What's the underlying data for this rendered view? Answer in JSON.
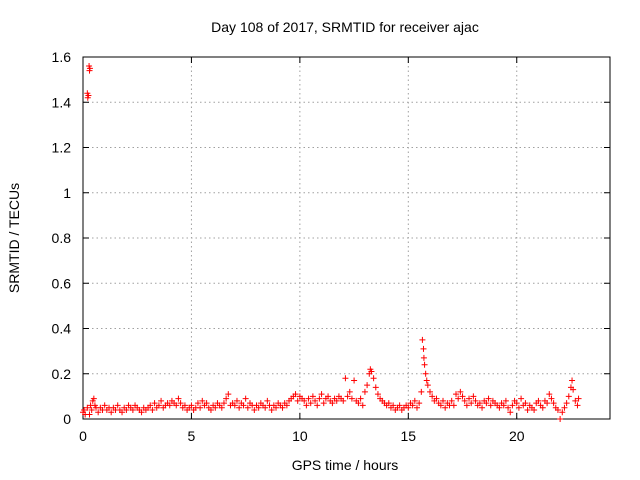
{
  "chart_data": {
    "type": "scatter",
    "title": "Day 108 of 2017, SRMTID for receiver ajac",
    "xlabel": "GPS time / hours",
    "ylabel": "SRMTID / TECUs",
    "xlim": [
      0,
      24.3
    ],
    "ylim": [
      0,
      1.6
    ],
    "xticks": [
      0,
      5,
      10,
      15,
      20
    ],
    "xtick_labels": [
      "0",
      "5",
      "10",
      "15",
      "20"
    ],
    "yticks": [
      0,
      0.2,
      0.4,
      0.6,
      0.8,
      1,
      1.2,
      1.4,
      1.6
    ],
    "ytick_labels": [
      "0",
      "0.2",
      "0.4",
      "0.6",
      "0.8",
      "1",
      "1.2",
      "1.4",
      "1.6"
    ],
    "grid": true,
    "marker": "plus",
    "color": "#ff0000",
    "series": [
      {
        "name": "SRMTID",
        "points": [
          [
            0.0,
            0.03
          ],
          [
            0.05,
            0.04
          ],
          [
            0.1,
            0.02
          ],
          [
            0.2,
            1.44
          ],
          [
            0.22,
            1.42
          ],
          [
            0.25,
            1.43
          ],
          [
            0.28,
            1.56
          ],
          [
            0.3,
            1.54
          ],
          [
            0.32,
            1.55
          ],
          [
            0.2,
            0.05
          ],
          [
            0.3,
            0.02
          ],
          [
            0.35,
            0.06
          ],
          [
            0.4,
            0.04
          ],
          [
            0.45,
            0.08
          ],
          [
            0.5,
            0.09
          ],
          [
            0.55,
            0.06
          ],
          [
            0.6,
            0.05
          ],
          [
            0.7,
            0.03
          ],
          [
            0.8,
            0.05
          ],
          [
            0.9,
            0.04
          ],
          [
            1.0,
            0.06
          ],
          [
            1.1,
            0.04
          ],
          [
            1.2,
            0.05
          ],
          [
            1.3,
            0.03
          ],
          [
            1.4,
            0.05
          ],
          [
            1.5,
            0.04
          ],
          [
            1.6,
            0.06
          ],
          [
            1.7,
            0.04
          ],
          [
            1.8,
            0.03
          ],
          [
            1.9,
            0.05
          ],
          [
            2.0,
            0.04
          ],
          [
            2.1,
            0.06
          ],
          [
            2.2,
            0.05
          ],
          [
            2.3,
            0.04
          ],
          [
            2.4,
            0.06
          ],
          [
            2.5,
            0.05
          ],
          [
            2.6,
            0.04
          ],
          [
            2.7,
            0.03
          ],
          [
            2.8,
            0.05
          ],
          [
            2.9,
            0.04
          ],
          [
            3.0,
            0.05
          ],
          [
            3.1,
            0.06
          ],
          [
            3.2,
            0.04
          ],
          [
            3.3,
            0.07
          ],
          [
            3.4,
            0.05
          ],
          [
            3.5,
            0.06
          ],
          [
            3.6,
            0.08
          ],
          [
            3.7,
            0.05
          ],
          [
            3.8,
            0.06
          ],
          [
            3.9,
            0.07
          ],
          [
            4.0,
            0.06
          ],
          [
            4.1,
            0.08
          ],
          [
            4.2,
            0.07
          ],
          [
            4.3,
            0.06
          ],
          [
            4.4,
            0.09
          ],
          [
            4.5,
            0.07
          ],
          [
            4.6,
            0.05
          ],
          [
            4.7,
            0.06
          ],
          [
            4.8,
            0.04
          ],
          [
            4.9,
            0.05
          ],
          [
            5.0,
            0.06
          ],
          [
            5.1,
            0.04
          ],
          [
            5.2,
            0.05
          ],
          [
            5.3,
            0.07
          ],
          [
            5.4,
            0.05
          ],
          [
            5.5,
            0.08
          ],
          [
            5.6,
            0.06
          ],
          [
            5.7,
            0.07
          ],
          [
            5.8,
            0.05
          ],
          [
            5.9,
            0.04
          ],
          [
            6.0,
            0.06
          ],
          [
            6.1,
            0.05
          ],
          [
            6.2,
            0.07
          ],
          [
            6.3,
            0.06
          ],
          [
            6.4,
            0.05
          ],
          [
            6.5,
            0.07
          ],
          [
            6.6,
            0.09
          ],
          [
            6.7,
            0.11
          ],
          [
            6.8,
            0.06
          ],
          [
            6.9,
            0.07
          ],
          [
            7.0,
            0.06
          ],
          [
            7.1,
            0.08
          ],
          [
            7.2,
            0.05
          ],
          [
            7.3,
            0.07
          ],
          [
            7.4,
            0.06
          ],
          [
            7.5,
            0.09
          ],
          [
            7.6,
            0.05
          ],
          [
            7.7,
            0.07
          ],
          [
            7.8,
            0.06
          ],
          [
            7.9,
            0.04
          ],
          [
            8.0,
            0.06
          ],
          [
            8.1,
            0.05
          ],
          [
            8.2,
            0.07
          ],
          [
            8.3,
            0.06
          ],
          [
            8.4,
            0.05
          ],
          [
            8.5,
            0.08
          ],
          [
            8.6,
            0.06
          ],
          [
            8.7,
            0.04
          ],
          [
            8.8,
            0.06
          ],
          [
            8.9,
            0.05
          ],
          [
            9.0,
            0.07
          ],
          [
            9.1,
            0.06
          ],
          [
            9.2,
            0.05
          ],
          [
            9.3,
            0.07
          ],
          [
            9.4,
            0.06
          ],
          [
            9.5,
            0.08
          ],
          [
            9.6,
            0.09
          ],
          [
            9.7,
            0.1
          ],
          [
            9.8,
            0.11
          ],
          [
            9.9,
            0.08
          ],
          [
            10.0,
            0.1
          ],
          [
            10.1,
            0.09
          ],
          [
            10.2,
            0.08
          ],
          [
            10.3,
            0.06
          ],
          [
            10.4,
            0.09
          ],
          [
            10.5,
            0.07
          ],
          [
            10.6,
            0.1
          ],
          [
            10.7,
            0.08
          ],
          [
            10.8,
            0.06
          ],
          [
            10.9,
            0.09
          ],
          [
            11.0,
            0.11
          ],
          [
            11.1,
            0.07
          ],
          [
            11.2,
            0.09
          ],
          [
            11.3,
            0.1
          ],
          [
            11.4,
            0.08
          ],
          [
            11.5,
            0.07
          ],
          [
            11.6,
            0.09
          ],
          [
            11.7,
            0.08
          ],
          [
            11.8,
            0.1
          ],
          [
            11.9,
            0.09
          ],
          [
            12.0,
            0.08
          ],
          [
            12.1,
            0.18
          ],
          [
            12.2,
            0.1
          ],
          [
            12.3,
            0.12
          ],
          [
            12.4,
            0.09
          ],
          [
            12.5,
            0.17
          ],
          [
            12.6,
            0.08
          ],
          [
            12.7,
            0.07
          ],
          [
            12.8,
            0.09
          ],
          [
            12.9,
            0.06
          ],
          [
            13.0,
            0.12
          ],
          [
            13.1,
            0.15
          ],
          [
            13.2,
            0.2
          ],
          [
            13.25,
            0.22
          ],
          [
            13.3,
            0.21
          ],
          [
            13.4,
            0.18
          ],
          [
            13.5,
            0.14
          ],
          [
            13.6,
            0.11
          ],
          [
            13.7,
            0.09
          ],
          [
            13.8,
            0.08
          ],
          [
            13.9,
            0.07
          ],
          [
            14.0,
            0.06
          ],
          [
            14.1,
            0.07
          ],
          [
            14.2,
            0.05
          ],
          [
            14.3,
            0.06
          ],
          [
            14.4,
            0.04
          ],
          [
            14.5,
            0.05
          ],
          [
            14.6,
            0.06
          ],
          [
            14.7,
            0.04
          ],
          [
            14.8,
            0.05
          ],
          [
            14.9,
            0.06
          ],
          [
            15.0,
            0.05
          ],
          [
            15.1,
            0.07
          ],
          [
            15.2,
            0.06
          ],
          [
            15.3,
            0.08
          ],
          [
            15.4,
            0.05
          ],
          [
            15.5,
            0.07
          ],
          [
            15.6,
            0.12
          ],
          [
            15.65,
            0.35
          ],
          [
            15.7,
            0.31
          ],
          [
            15.72,
            0.27
          ],
          [
            15.75,
            0.24
          ],
          [
            15.8,
            0.2
          ],
          [
            15.85,
            0.17
          ],
          [
            15.9,
            0.15
          ],
          [
            16.0,
            0.12
          ],
          [
            16.1,
            0.1
          ],
          [
            16.2,
            0.08
          ],
          [
            16.3,
            0.09
          ],
          [
            16.4,
            0.07
          ],
          [
            16.5,
            0.06
          ],
          [
            16.6,
            0.08
          ],
          [
            16.7,
            0.05
          ],
          [
            16.8,
            0.07
          ],
          [
            16.9,
            0.06
          ],
          [
            17.0,
            0.08
          ],
          [
            17.1,
            0.06
          ],
          [
            17.2,
            0.11
          ],
          [
            17.3,
            0.09
          ],
          [
            17.4,
            0.12
          ],
          [
            17.5,
            0.1
          ],
          [
            17.6,
            0.08
          ],
          [
            17.7,
            0.06
          ],
          [
            17.8,
            0.09
          ],
          [
            17.9,
            0.07
          ],
          [
            18.0,
            0.1
          ],
          [
            18.1,
            0.08
          ],
          [
            18.2,
            0.06
          ],
          [
            18.3,
            0.07
          ],
          [
            18.4,
            0.05
          ],
          [
            18.5,
            0.08
          ],
          [
            18.6,
            0.07
          ],
          [
            18.7,
            0.09
          ],
          [
            18.8,
            0.06
          ],
          [
            18.9,
            0.08
          ],
          [
            19.0,
            0.07
          ],
          [
            19.1,
            0.06
          ],
          [
            19.2,
            0.05
          ],
          [
            19.3,
            0.07
          ],
          [
            19.4,
            0.06
          ],
          [
            19.5,
            0.08
          ],
          [
            19.6,
            0.05
          ],
          [
            19.7,
            0.03
          ],
          [
            19.8,
            0.06
          ],
          [
            19.9,
            0.08
          ],
          [
            20.0,
            0.07
          ],
          [
            20.1,
            0.05
          ],
          [
            20.2,
            0.09
          ],
          [
            20.3,
            0.06
          ],
          [
            20.4,
            0.07
          ],
          [
            20.5,
            0.04
          ],
          [
            20.6,
            0.06
          ],
          [
            20.7,
            0.05
          ],
          [
            20.8,
            0.04
          ],
          [
            20.9,
            0.07
          ],
          [
            21.0,
            0.08
          ],
          [
            21.1,
            0.06
          ],
          [
            21.2,
            0.05
          ],
          [
            21.3,
            0.08
          ],
          [
            21.4,
            0.07
          ],
          [
            21.5,
            0.11
          ],
          [
            21.6,
            0.09
          ],
          [
            21.7,
            0.07
          ],
          [
            21.8,
            0.05
          ],
          [
            21.9,
            0.04
          ],
          [
            22.0,
            0.0
          ],
          [
            22.1,
            0.03
          ],
          [
            22.2,
            0.05
          ],
          [
            22.3,
            0.07
          ],
          [
            22.4,
            0.1
          ],
          [
            22.5,
            0.14
          ],
          [
            22.55,
            0.17
          ],
          [
            22.6,
            0.13
          ],
          [
            22.7,
            0.08
          ],
          [
            22.8,
            0.06
          ],
          [
            22.85,
            0.09
          ]
        ]
      }
    ]
  }
}
